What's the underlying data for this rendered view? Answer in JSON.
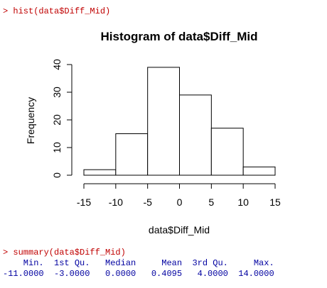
{
  "console": {
    "cmd1": "> hist(data$Diff_Mid)",
    "cmd2": "> summary(data$Diff_Mid)",
    "summary_header": "    Min.  1st Qu.   Median     Mean  3rd Qu.     Max. ",
    "summary_values": "-11.0000  -3.0000   0.0000   0.4095   4.0000  14.0000 ",
    "prompt_color": "#c00000",
    "output_color": "#0000a0"
  },
  "chart_data": {
    "type": "bar",
    "title": "Histogram of data$Diff_Mid",
    "xlabel": "data$Diff_Mid",
    "ylabel": "Frequency",
    "bins": [
      {
        "from": -15,
        "to": -10,
        "count": 2
      },
      {
        "from": -10,
        "to": -5,
        "count": 15
      },
      {
        "from": -5,
        "to": 0,
        "count": 39
      },
      {
        "from": 0,
        "to": 5,
        "count": 29
      },
      {
        "from": 5,
        "to": 10,
        "count": 17
      },
      {
        "from": 10,
        "to": 15,
        "count": 3
      }
    ],
    "xticks": [
      -15,
      -10,
      -5,
      0,
      5,
      10,
      15
    ],
    "yticks": [
      0,
      10,
      20,
      30,
      40
    ],
    "xlim": [
      -15,
      15
    ],
    "ylim": [
      0,
      40
    ],
    "grid": false
  }
}
